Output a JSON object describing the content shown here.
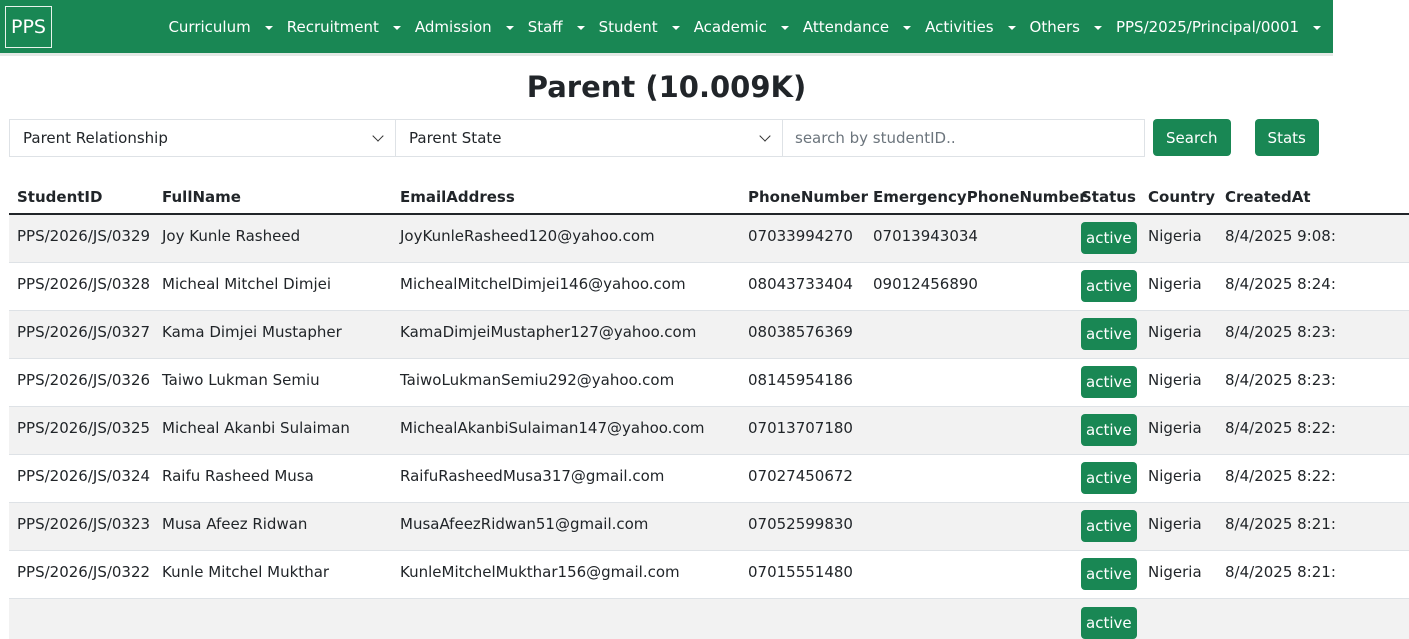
{
  "nav": {
    "brand": "PPS",
    "items": [
      "Curriculum",
      "Recruitment",
      "Admission",
      "Staff",
      "Student",
      "Academic",
      "Attendance",
      "Activities",
      "Others",
      "PPS/2025/Principal/0001"
    ]
  },
  "page_title": "Parent (10.009K)",
  "filters": {
    "relationship": "Parent Relationship",
    "state": "Parent State",
    "search_placeholder": "search by studentID..",
    "search_label": "Search",
    "stats_label": "Stats"
  },
  "colors": {
    "accent": "#198754"
  },
  "table": {
    "headers": [
      "StudentID",
      "FullName",
      "EmailAddress",
      "PhoneNumber",
      "EmergencyPhoneNumber",
      "Status",
      "Country",
      "CreatedAt"
    ],
    "rows": [
      [
        "PPS/2026/JS/0329",
        "Joy Kunle Rasheed",
        "JoyKunleRasheed120@yahoo.com",
        "07033994270",
        "07013943034",
        "active",
        "Nigeria",
        "8/4/2025 9:08:"
      ],
      [
        "PPS/2026/JS/0328",
        "Micheal Mitchel Dimjei",
        "MichealMitchelDimjei146@yahoo.com",
        "08043733404",
        "09012456890",
        "active",
        "Nigeria",
        "8/4/2025 8:24:"
      ],
      [
        "PPS/2026/JS/0327",
        "Kama Dimjei Mustapher",
        "KamaDimjeiMustapher127@yahoo.com",
        "08038576369",
        "",
        "active",
        "Nigeria",
        "8/4/2025 8:23:"
      ],
      [
        "PPS/2026/JS/0326",
        "Taiwo Lukman Semiu",
        "TaiwoLukmanSemiu292@yahoo.com",
        "08145954186",
        "",
        "active",
        "Nigeria",
        "8/4/2025 8:23:"
      ],
      [
        "PPS/2026/JS/0325",
        "Micheal Akanbi Sulaiman",
        "MichealAkanbiSulaiman147@yahoo.com",
        "07013707180",
        "",
        "active",
        "Nigeria",
        "8/4/2025 8:22:"
      ],
      [
        "PPS/2026/JS/0324",
        "Raifu Rasheed Musa",
        "RaifuRasheedMusa317@gmail.com",
        "07027450672",
        "",
        "active",
        "Nigeria",
        "8/4/2025 8:22:"
      ],
      [
        "PPS/2026/JS/0323",
        "Musa Afeez Ridwan",
        "MusaAfeezRidwan51@gmail.com",
        "07052599830",
        "",
        "active",
        "Nigeria",
        "8/4/2025 8:21:"
      ],
      [
        "PPS/2026/JS/0322",
        "Kunle Mitchel Mukthar",
        "KunleMitchelMukthar156@gmail.com",
        "07015551480",
        "",
        "active",
        "Nigeria",
        "8/4/2025 8:21:"
      ],
      [
        "",
        "",
        "",
        "",
        "",
        "active",
        "",
        ""
      ]
    ]
  }
}
